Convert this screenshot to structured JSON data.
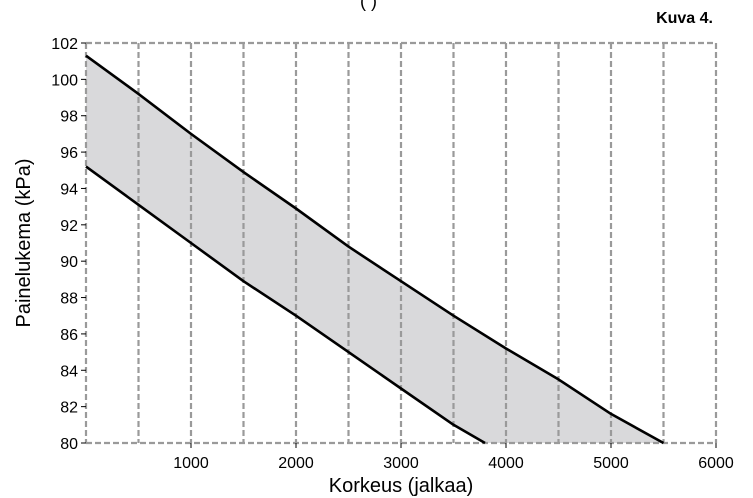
{
  "figure_label": "Kuva 4.",
  "top_clipped_text": "(  )",
  "chart_data": {
    "type": "area",
    "title": "",
    "xlabel": "Korkeus (jalkaa)",
    "ylabel": "Painelukema (kPa)",
    "xlim": [
      0,
      6000
    ],
    "ylim": [
      80,
      102
    ],
    "xticks": [
      1000,
      2000,
      3000,
      4000,
      5000,
      6000
    ],
    "xtick_labels": [
      "1000",
      "2000",
      "3000",
      "4000",
      "5000",
      "6000"
    ],
    "yticks": [
      80,
      82,
      84,
      86,
      88,
      90,
      92,
      94,
      96,
      98,
      100,
      102
    ],
    "ytick_labels": [
      "80",
      "82",
      "84",
      "86",
      "88",
      "90",
      "92",
      "94",
      "96",
      "98",
      "100",
      "102"
    ],
    "vertical_gridlines": [
      500,
      1000,
      1500,
      2000,
      2500,
      3000,
      3500,
      4000,
      4500,
      5000,
      5500
    ],
    "grid": true,
    "grid_style": "dashed vertical",
    "fill_color": "#d9d9db",
    "line_color": "#000000",
    "series": [
      {
        "role": "upper",
        "x": [
          0,
          500,
          1000,
          1500,
          2000,
          2500,
          3000,
          3500,
          4000,
          4500,
          5000,
          5500
        ],
        "values": [
          101.3,
          99.2,
          97.0,
          94.9,
          92.9,
          90.8,
          88.9,
          87.0,
          85.2,
          83.5,
          81.6,
          79.9
        ]
      },
      {
        "role": "lower",
        "x": [
          0,
          500,
          1000,
          1500,
          2000,
          2500,
          3000,
          3500,
          3800
        ],
        "values": [
          95.2,
          93.1,
          91.0,
          88.9,
          87.0,
          85.0,
          83.0,
          81.0,
          79.9
        ]
      }
    ]
  }
}
